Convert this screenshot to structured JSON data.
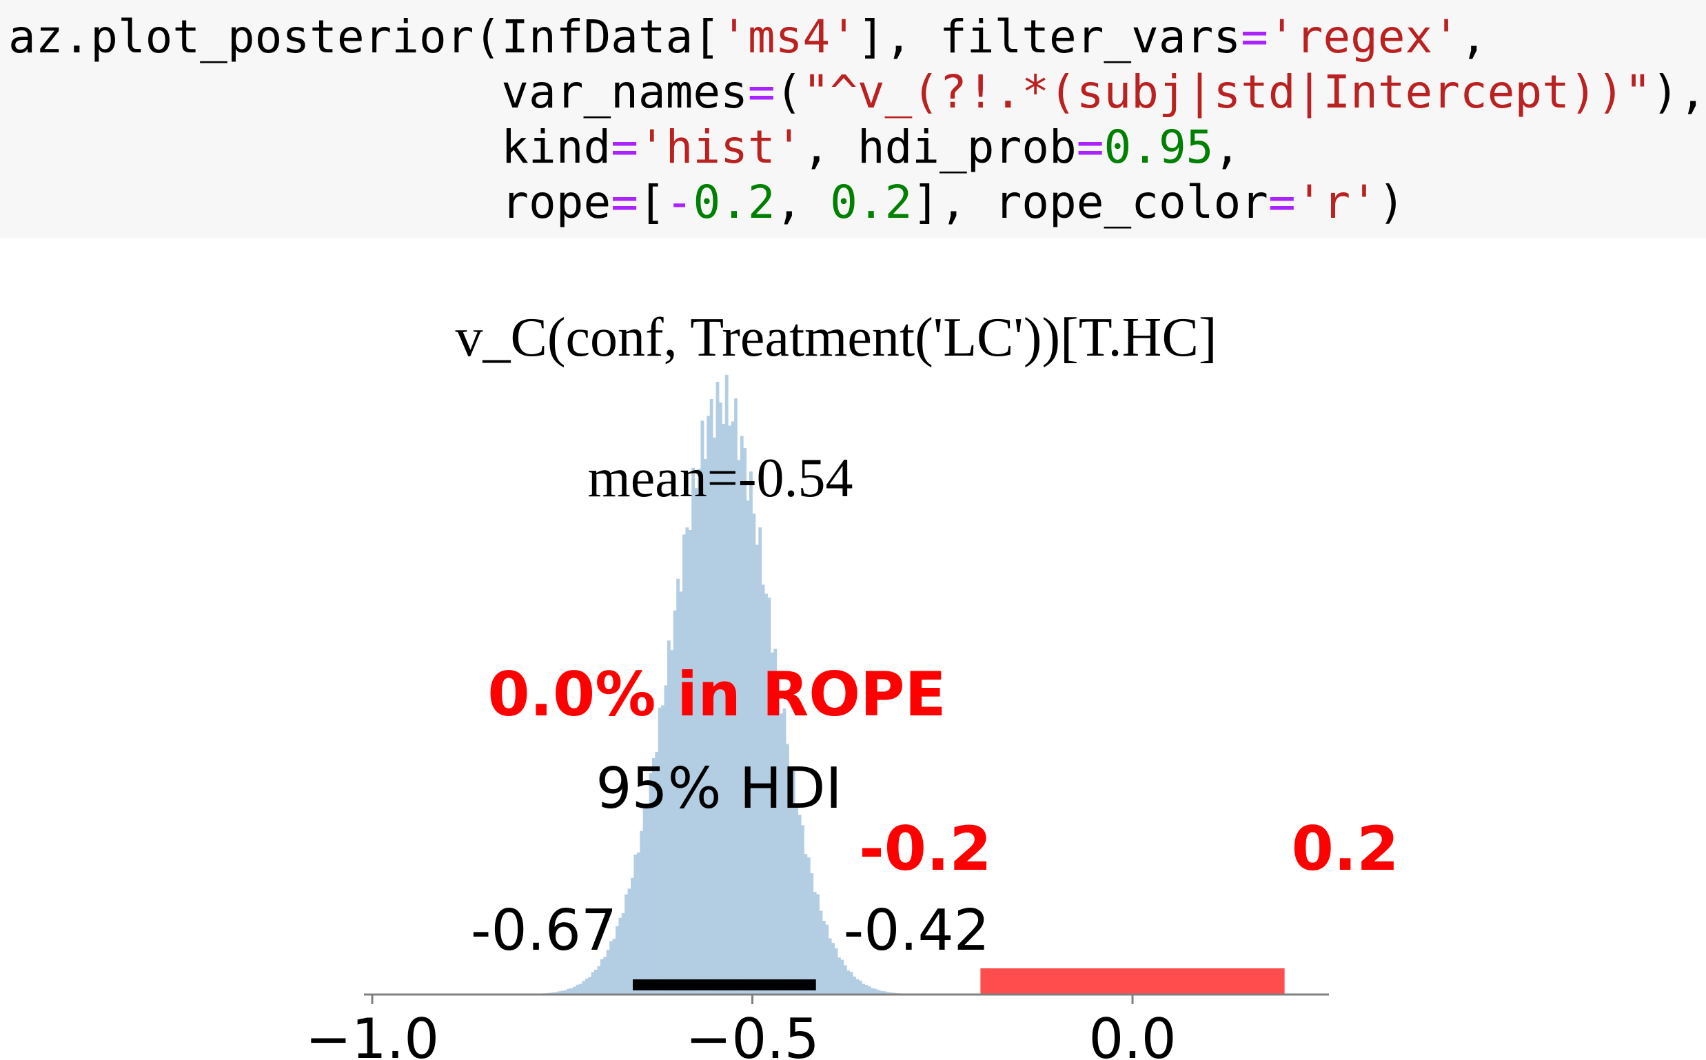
{
  "code": {
    "line1": [
      {
        "t": "az.plot_posterior(InfData[",
        "c": "p"
      },
      {
        "t": "'ms4'",
        "c": "str"
      },
      {
        "t": "], filter_vars",
        "c": "p"
      },
      {
        "t": "=",
        "c": "op"
      },
      {
        "t": "'regex'",
        "c": "str"
      },
      {
        "t": ",",
        "c": "p"
      }
    ],
    "line2": [
      {
        "t": "                  var_names",
        "c": "p"
      },
      {
        "t": "=",
        "c": "op"
      },
      {
        "t": "(",
        "c": "p"
      },
      {
        "t": "\"^v_(?!.*(subj|std|Intercept))\"",
        "c": "str"
      },
      {
        "t": "),",
        "c": "p"
      }
    ],
    "line3": [
      {
        "t": "                  kind",
        "c": "p"
      },
      {
        "t": "=",
        "c": "op"
      },
      {
        "t": "'hist'",
        "c": "str"
      },
      {
        "t": ", hdi_prob",
        "c": "p"
      },
      {
        "t": "=",
        "c": "op"
      },
      {
        "t": "0.95",
        "c": "num"
      },
      {
        "t": ",",
        "c": "p"
      }
    ],
    "line4": [
      {
        "t": "                  rope",
        "c": "p"
      },
      {
        "t": "=",
        "c": "op"
      },
      {
        "t": "[",
        "c": "p"
      },
      {
        "t": "-",
        "c": "op"
      },
      {
        "t": "0.2",
        "c": "num"
      },
      {
        "t": ", ",
        "c": "p"
      },
      {
        "t": "0.2",
        "c": "num"
      },
      {
        "t": "], rope_color",
        "c": "p"
      },
      {
        "t": "=",
        "c": "op"
      },
      {
        "t": "'r'",
        "c": "str"
      },
      {
        "t": ")",
        "c": "p"
      }
    ]
  },
  "chart_data": {
    "type": "histogram",
    "title": "v_C(conf, Treatment('LC'))[T.HC]",
    "xlim": [
      -1.0,
      0.25
    ],
    "x_ticks": [
      -1.0,
      -0.5,
      0.0
    ],
    "x_tick_labels": [
      "−1.0",
      "−0.5",
      "0.0"
    ],
    "distribution": {
      "mean": -0.54,
      "sd": 0.066,
      "peak_relative_height": 1.0
    },
    "mean_label": "mean=-0.54",
    "hdi": {
      "prob_label": "95% HDI",
      "low": -0.67,
      "high": -0.42,
      "low_label": "-0.67",
      "high_label": "-0.42"
    },
    "rope": {
      "low": -0.2,
      "high": 0.2,
      "low_label": "-0.2",
      "high_label": "0.2",
      "pct_label": "0.0% in ROPE"
    },
    "colors": {
      "hist": "#b3cde3",
      "rope": "#ff4d4d",
      "rope_text": "#ff0000",
      "hdi": "#000000",
      "axis": "#808080"
    },
    "grid": false,
    "y_axis": "hidden"
  }
}
